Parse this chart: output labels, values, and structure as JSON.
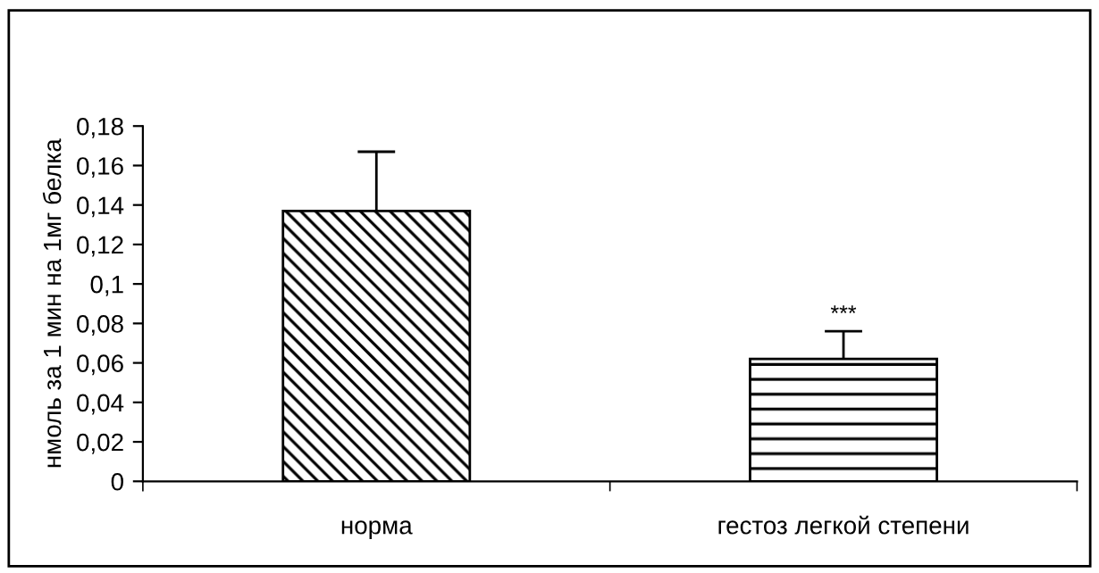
{
  "chart_data": {
    "type": "bar",
    "ylabel": "нмоль за 1 мин на 1мг белка",
    "categories": [
      "норма",
      "гестоз легкой степени"
    ],
    "values": [
      0.137,
      0.062
    ],
    "errors": [
      [
        0.137,
        0.167
      ],
      [
        0.062,
        0.076
      ]
    ],
    "colors": [
      "#000000",
      "#000000"
    ],
    "ylim": [
      0,
      0.18
    ],
    "yticks": [
      0,
      {
        "value": 0.02,
        "label": "0,02"
      },
      {
        "value": 0.04,
        "label": "0,04"
      },
      {
        "value": 0.06,
        "label": "0,06"
      },
      {
        "value": 0.08,
        "label": "0,08"
      },
      {
        "value": 0.1,
        "label": "0,1"
      },
      {
        "value": 0.12,
        "label": "0,12"
      },
      {
        "value": 0.14,
        "label": "0,14"
      },
      {
        "value": 0.16,
        "label": "0,16"
      },
      {
        "value": 0.18,
        "label": "0,18"
      }
    ],
    "annotations": [
      {
        "text": "***",
        "x": "гестоз легкой степени",
        "y": 0.079
      }
    ],
    "grid": false,
    "legend": false
  }
}
